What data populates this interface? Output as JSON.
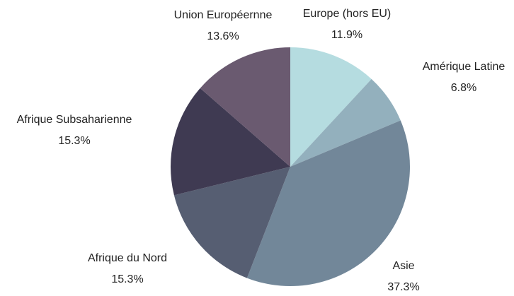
{
  "chart_data": {
    "type": "pie",
    "categories": [
      "Europe (hors EU)",
      "Amérique Latine",
      "Asie",
      "Afrique du Nord",
      "Afrique Subsaharienne",
      "Union Européernne"
    ],
    "values": [
      11.9,
      6.8,
      37.3,
      15.3,
      15.3,
      13.6
    ],
    "value_labels": [
      "11.9%",
      "6.8%",
      "37.3%",
      "15.3%",
      "15.3%",
      "13.6%"
    ],
    "colors": [
      "#b5dce0",
      "#93b0bd",
      "#728799",
      "#565e72",
      "#3f3a52",
      "#6a5a70"
    ]
  }
}
